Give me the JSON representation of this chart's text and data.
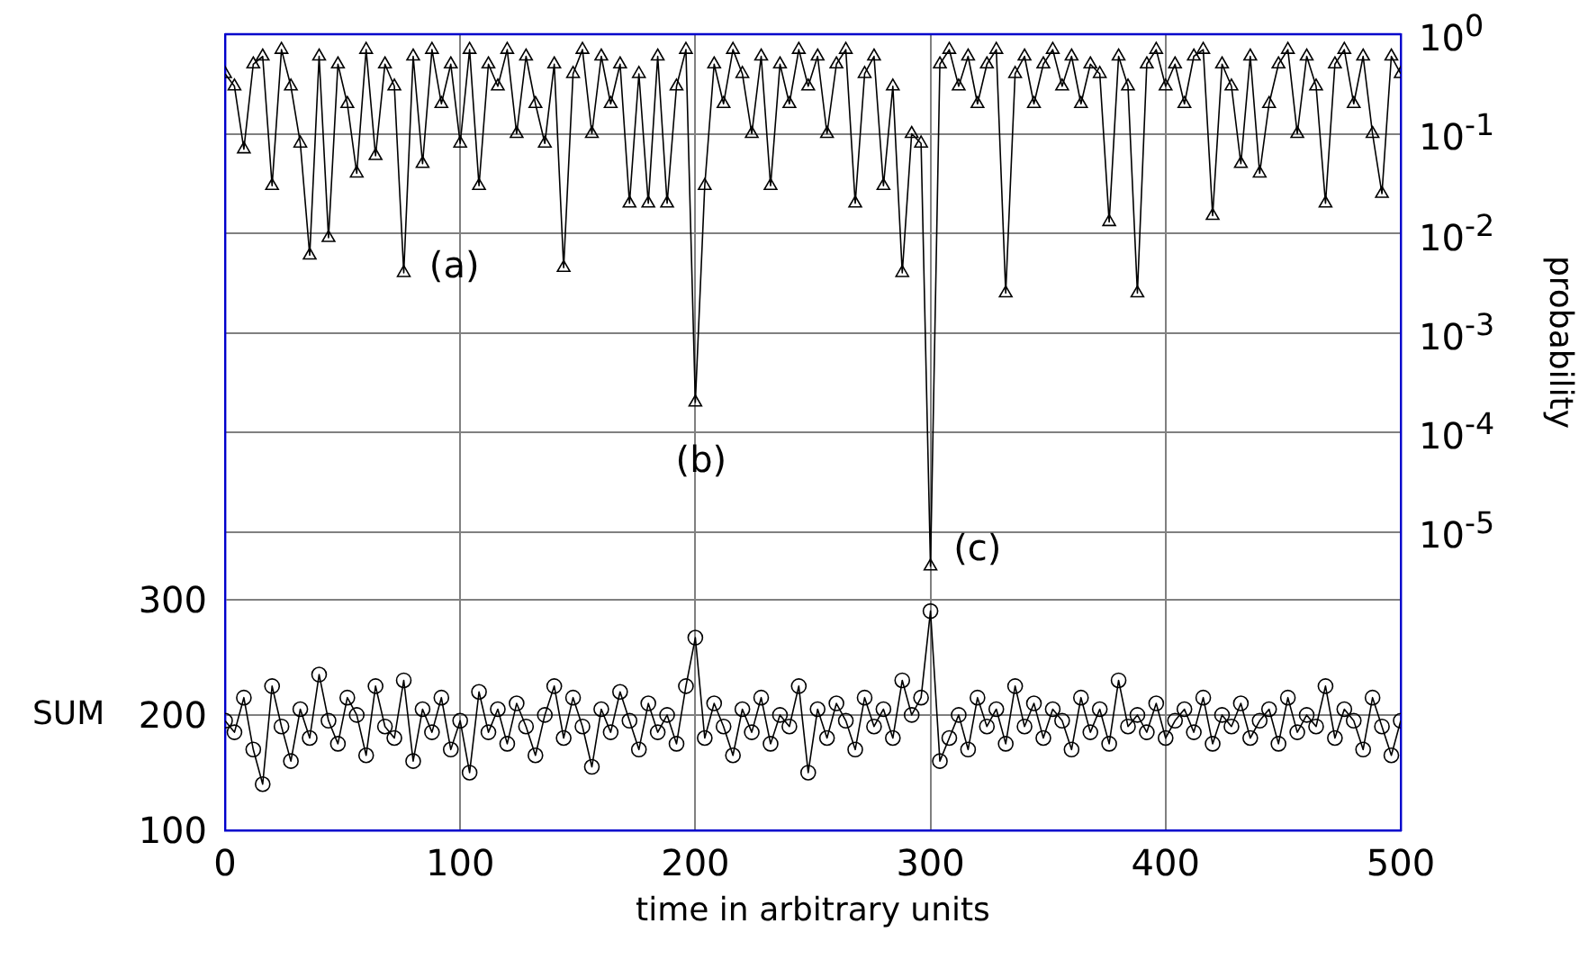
{
  "chart_data": {
    "type": "line",
    "xlabel": "time in arbitrary units",
    "ylabel": "SUM",
    "y2label": "probability",
    "x": [
      0,
      4,
      8,
      12,
      16,
      20,
      24,
      28,
      32,
      36,
      40,
      44,
      48,
      52,
      56,
      60,
      64,
      68,
      72,
      76,
      80,
      84,
      88,
      92,
      96,
      100,
      104,
      108,
      112,
      116,
      120,
      124,
      128,
      132,
      136,
      140,
      144,
      148,
      152,
      156,
      160,
      164,
      168,
      172,
      176,
      180,
      184,
      188,
      192,
      196,
      200,
      204,
      208,
      212,
      216,
      220,
      224,
      228,
      232,
      236,
      240,
      244,
      248,
      252,
      256,
      260,
      264,
      268,
      272,
      276,
      280,
      284,
      288,
      292,
      296,
      300,
      304,
      308,
      312,
      316,
      320,
      324,
      328,
      332,
      336,
      340,
      344,
      348,
      352,
      356,
      360,
      364,
      368,
      372,
      376,
      380,
      384,
      388,
      392,
      396,
      400,
      404,
      408,
      412,
      416,
      420,
      424,
      428,
      432,
      436,
      440,
      444,
      448,
      452,
      456,
      460,
      464,
      468,
      472,
      476,
      480,
      484,
      488,
      492,
      496,
      500
    ],
    "series": [
      {
        "name": null,
        "color": "#000000",
        "axis": "y",
        "marker": "circle",
        "values": [
          195,
          185,
          215,
          170,
          140,
          225,
          190,
          160,
          205,
          180,
          235,
          195,
          175,
          215,
          200,
          165,
          225,
          190,
          180,
          230,
          160,
          205,
          185,
          215,
          170,
          195,
          150,
          220,
          185,
          205,
          175,
          210,
          190,
          165,
          200,
          225,
          180,
          215,
          190,
          155,
          205,
          185,
          220,
          195,
          170,
          210,
          185,
          200,
          175,
          225,
          267,
          180,
          210,
          190,
          165,
          205,
          185,
          215,
          175,
          200,
          190,
          225,
          150,
          205,
          180,
          210,
          195,
          170,
          215,
          190,
          205,
          180,
          230,
          200,
          215,
          290,
          160,
          180,
          200,
          170,
          215,
          190,
          205,
          175,
          225,
          190,
          210,
          180,
          205,
          195,
          170,
          215,
          185,
          205,
          175,
          230,
          190,
          200,
          185,
          210,
          180,
          195,
          205,
          185,
          215,
          175,
          200,
          190,
          210,
          180,
          195,
          205,
          175,
          215,
          185,
          200,
          190,
          225,
          180,
          205,
          195,
          170,
          215,
          190,
          165,
          195
        ]
      },
      {
        "name": null,
        "color": "#000000",
        "axis": "y2",
        "marker": "triangle",
        "values": [
          0.4,
          0.3,
          0.07,
          0.5,
          0.6,
          0.03,
          0.7,
          0.3,
          0.08,
          0.006,
          0.6,
          0.009,
          0.5,
          0.2,
          0.04,
          0.7,
          0.06,
          0.5,
          0.3,
          0.004,
          0.6,
          0.05,
          0.7,
          0.2,
          0.5,
          0.08,
          0.7,
          0.03,
          0.5,
          0.3,
          0.7,
          0.1,
          0.6,
          0.2,
          0.08,
          0.5,
          0.0045,
          0.4,
          0.7,
          0.1,
          0.6,
          0.2,
          0.5,
          0.02,
          0.4,
          0.02,
          0.6,
          0.02,
          0.3,
          0.7,
          0.0002,
          0.03,
          0.5,
          0.2,
          0.7,
          0.4,
          0.1,
          0.6,
          0.03,
          0.5,
          0.2,
          0.7,
          0.3,
          0.6,
          0.1,
          0.5,
          0.7,
          0.02,
          0.4,
          0.6,
          0.03,
          0.3,
          0.004,
          0.1,
          0.08,
          4.5e-06,
          0.5,
          0.7,
          0.3,
          0.6,
          0.2,
          0.5,
          0.7,
          0.0025,
          0.4,
          0.6,
          0.2,
          0.5,
          0.7,
          0.3,
          0.6,
          0.2,
          0.5,
          0.4,
          0.013,
          0.6,
          0.3,
          0.0025,
          0.5,
          0.7,
          0.3,
          0.5,
          0.2,
          0.6,
          0.7,
          0.015,
          0.5,
          0.3,
          0.05,
          0.6,
          0.04,
          0.2,
          0.5,
          0.7,
          0.1,
          0.6,
          0.3,
          0.02,
          0.5,
          0.7,
          0.2,
          0.6,
          0.1,
          0.025,
          0.6,
          0.4
        ]
      }
    ],
    "xlim": [
      0,
      500
    ],
    "xticks": [
      0,
      100,
      200,
      300,
      400,
      500
    ],
    "ylim": [
      100,
      790
    ],
    "yticks": [
      100,
      200,
      300
    ],
    "y2lim": [
      1e-08,
      1
    ],
    "log": "y2",
    "y2ticks": [
      {
        "value": 1,
        "label": "10$^{0}$"
      },
      {
        "value": 0.1,
        "label": "10$^{-1}$"
      },
      {
        "value": 0.01,
        "label": "10$^{-2}$"
      },
      {
        "value": 0.001,
        "label": "10$^{-3}$"
      },
      {
        "value": 0.0001,
        "label": "10$^{-4}$"
      },
      {
        "value": 1e-05,
        "label": "10$^{-5}$"
      }
    ],
    "annotations": [
      "(a)",
      "(b)",
      "(c)"
    ],
    "grid": true,
    "legend": false,
    "line_style": "solid"
  }
}
